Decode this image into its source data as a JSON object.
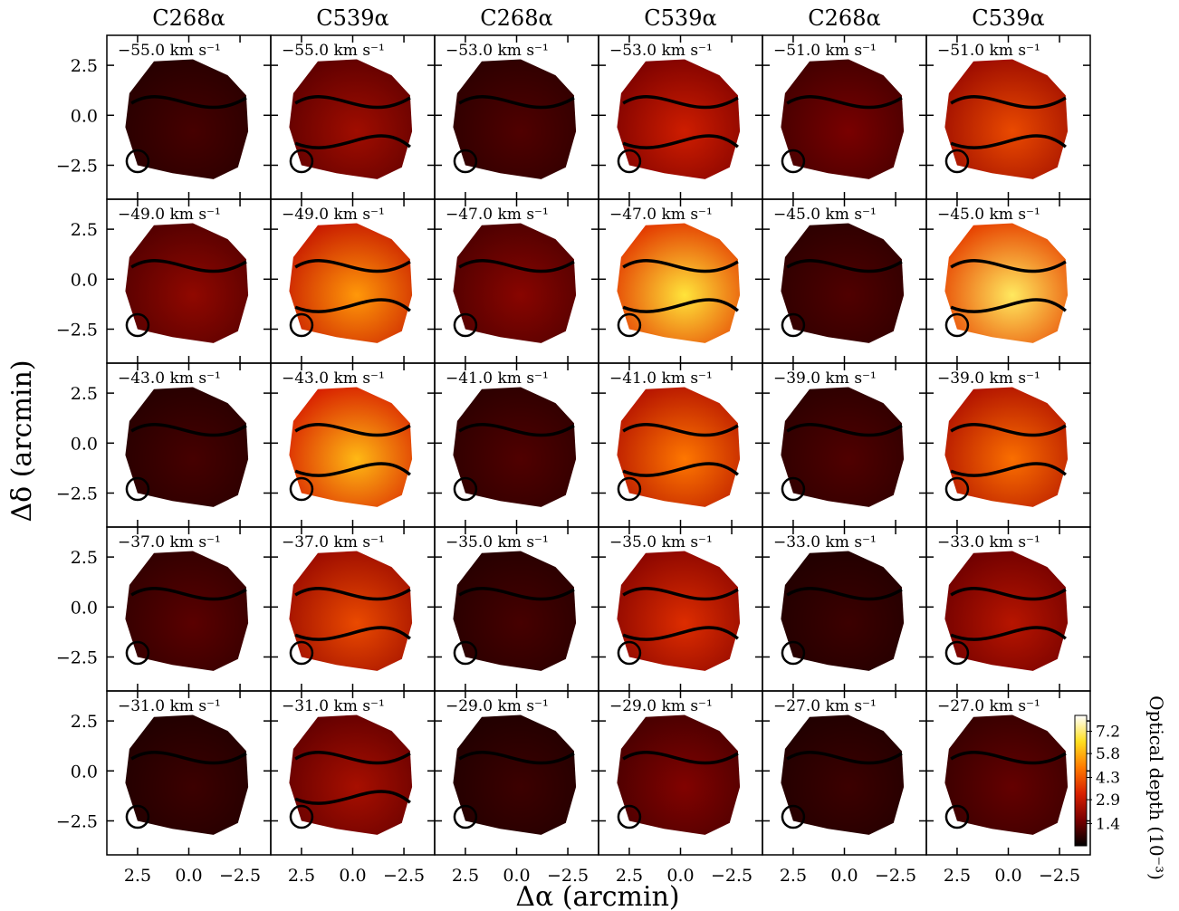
{
  "figure": {
    "x_axis_label": "Δα (arcmin)",
    "y_axis_label": "Δδ (arcmin)",
    "colorbar_label": "Optical depth (10⁻³)",
    "column_headers": [
      "C268α",
      "C539α",
      "C268α",
      "C539α",
      "C268α",
      "C539α"
    ]
  },
  "chart_data": {
    "type": "heatmap",
    "layout": {
      "rows": 5,
      "columns": 6
    },
    "xlim": [
      4.0,
      -4.0
    ],
    "ylim": [
      -4.2,
      4.0
    ],
    "x_ticks": [
      2.5,
      0.0,
      -2.5
    ],
    "x_tick_labels": [
      "2.5",
      "0.0",
      "−2.5"
    ],
    "y_ticks": [
      2.5,
      0.0,
      -2.5
    ],
    "y_tick_labels": [
      "2.5",
      "0.0",
      "−2.5"
    ],
    "colorbar": {
      "colormap": "hot",
      "range": [
        0,
        8.2
      ],
      "ticks": [
        7.2,
        5.8,
        4.3,
        2.9,
        1.4
      ],
      "tick_labels": [
        "7.2",
        "5.8",
        "4.3",
        "2.9",
        "1.4"
      ]
    },
    "colormap_colors": [
      "#000000",
      "#7a0000",
      "#d82000",
      "#ff7a00",
      "#ffe020",
      "#ffffff"
    ],
    "beam_marker": "circle",
    "panels": [
      {
        "row": 0,
        "col": 0,
        "line": "C268α",
        "velocity_label": "−55.0 km s⁻¹",
        "level": 0.7
      },
      {
        "row": 0,
        "col": 1,
        "line": "C539α",
        "velocity_label": "−55.0 km s⁻¹",
        "level": 1.7
      },
      {
        "row": 0,
        "col": 2,
        "line": "C268α",
        "velocity_label": "−53.0 km s⁻¹",
        "level": 0.8
      },
      {
        "row": 0,
        "col": 3,
        "line": "C539α",
        "velocity_label": "−53.0 km s⁻¹",
        "level": 2.3
      },
      {
        "row": 0,
        "col": 4,
        "line": "C268α",
        "velocity_label": "−51.0 km s⁻¹",
        "level": 1.2
      },
      {
        "row": 0,
        "col": 5,
        "line": "C539α",
        "velocity_label": "−51.0 km s⁻¹",
        "level": 3.0
      },
      {
        "row": 1,
        "col": 0,
        "line": "C268α",
        "velocity_label": "−49.0 km s⁻¹",
        "level": 1.5
      },
      {
        "row": 1,
        "col": 1,
        "line": "C539α",
        "velocity_label": "−49.0 km s⁻¹",
        "level": 4.0
      },
      {
        "row": 1,
        "col": 2,
        "line": "C268α",
        "velocity_label": "−47.0 km s⁻¹",
        "level": 1.4
      },
      {
        "row": 1,
        "col": 3,
        "line": "C539α",
        "velocity_label": "−47.0 km s⁻¹",
        "level": 5.0
      },
      {
        "row": 1,
        "col": 4,
        "line": "C268α",
        "velocity_label": "−45.0 km s⁻¹",
        "level": 0.8
      },
      {
        "row": 1,
        "col": 5,
        "line": "C539α",
        "velocity_label": "−45.0 km s⁻¹",
        "level": 5.2
      },
      {
        "row": 2,
        "col": 0,
        "line": "C268α",
        "velocity_label": "−43.0 km s⁻¹",
        "level": 0.7
      },
      {
        "row": 2,
        "col": 1,
        "line": "C539α",
        "velocity_label": "−43.0 km s⁻¹",
        "level": 4.4
      },
      {
        "row": 2,
        "col": 2,
        "line": "C268α",
        "velocity_label": "−41.0 km s⁻¹",
        "level": 0.8
      },
      {
        "row": 2,
        "col": 3,
        "line": "C539α",
        "velocity_label": "−41.0 km s⁻¹",
        "level": 3.6
      },
      {
        "row": 2,
        "col": 4,
        "line": "C268α",
        "velocity_label": "−39.0 km s⁻¹",
        "level": 0.8
      },
      {
        "row": 2,
        "col": 5,
        "line": "C539α",
        "velocity_label": "−39.0 km s⁻¹",
        "level": 3.5
      },
      {
        "row": 3,
        "col": 0,
        "line": "C268α",
        "velocity_label": "−37.0 km s⁻¹",
        "level": 0.9
      },
      {
        "row": 3,
        "col": 1,
        "line": "C539α",
        "velocity_label": "−37.0 km s⁻¹",
        "level": 3.0
      },
      {
        "row": 3,
        "col": 2,
        "line": "C268α",
        "velocity_label": "−35.0 km s⁻¹",
        "level": 0.7
      },
      {
        "row": 3,
        "col": 3,
        "line": "C539α",
        "velocity_label": "−35.0 km s⁻¹",
        "level": 2.6
      },
      {
        "row": 3,
        "col": 4,
        "line": "C268α",
        "velocity_label": "−33.0 km s⁻¹",
        "level": 0.6
      },
      {
        "row": 3,
        "col": 5,
        "line": "C539α",
        "velocity_label": "−33.0 km s⁻¹",
        "level": 2.0
      },
      {
        "row": 4,
        "col": 0,
        "line": "C268α",
        "velocity_label": "−31.0 km s⁻¹",
        "level": 0.6
      },
      {
        "row": 4,
        "col": 1,
        "line": "C539α",
        "velocity_label": "−31.0 km s⁻¹",
        "level": 1.8
      },
      {
        "row": 4,
        "col": 2,
        "line": "C268α",
        "velocity_label": "−29.0 km s⁻¹",
        "level": 0.6
      },
      {
        "row": 4,
        "col": 3,
        "line": "C539α",
        "velocity_label": "−29.0 km s⁻¹",
        "level": 1.3
      },
      {
        "row": 4,
        "col": 4,
        "line": "C268α",
        "velocity_label": "−27.0 km s⁻¹",
        "level": 0.6
      },
      {
        "row": 4,
        "col": 5,
        "line": "C539α",
        "velocity_label": "−27.0 km s⁻¹",
        "level": 1.0
      }
    ]
  }
}
